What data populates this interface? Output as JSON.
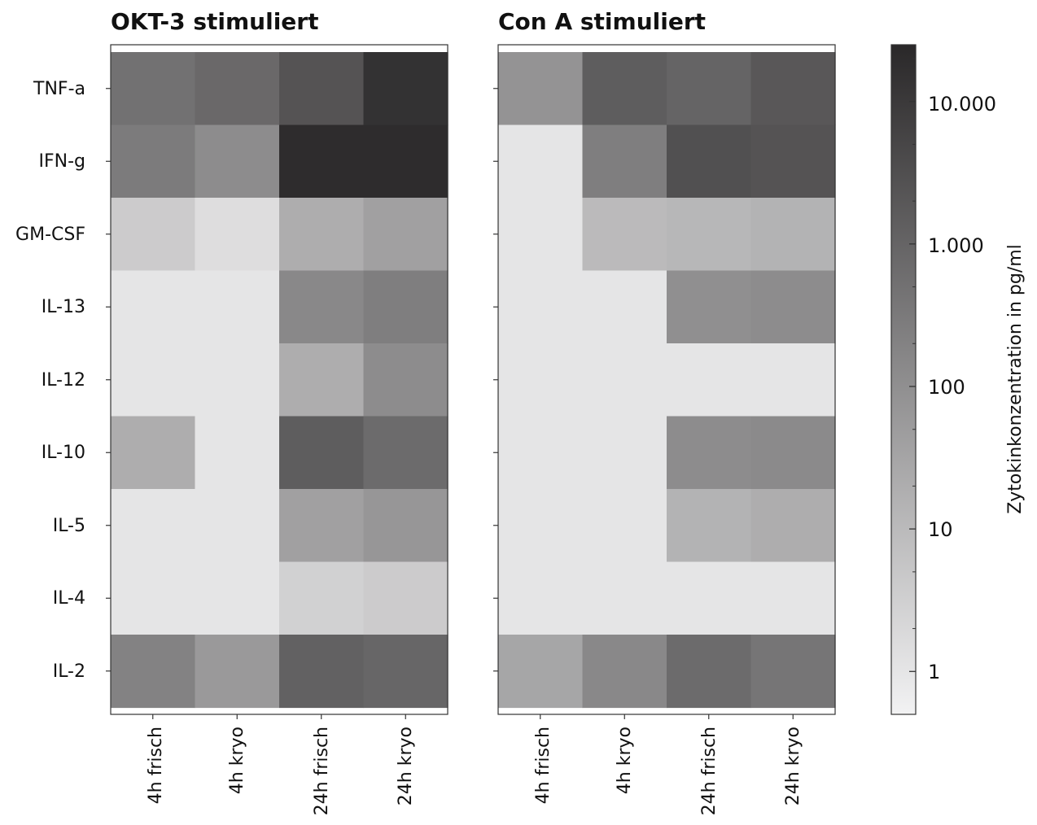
{
  "chart_data": [
    {
      "type": "heatmap",
      "title": "OKT-3 stimuliert",
      "rows": [
        "TNF-a",
        "IFN-g",
        "GM-CSF",
        "IL-13",
        "IL-12",
        "IL-10",
        "IL-5",
        "IL-4",
        "IL-2"
      ],
      "columns": [
        "4h frisch",
        "4h kryo",
        "24h frisch",
        "24h kryo"
      ],
      "values": [
        [
          500,
          800,
          2500,
          15000
        ],
        [
          300,
          120,
          20000,
          20000
        ],
        [
          4,
          1.5,
          20,
          40
        ],
        [
          1,
          1,
          150,
          250
        ],
        [
          1,
          1,
          20,
          120
        ],
        [
          20,
          1,
          1500,
          700
        ],
        [
          1,
          1,
          40,
          70
        ],
        [
          1,
          1,
          3,
          4
        ],
        [
          200,
          60,
          1200,
          900
        ]
      ]
    },
    {
      "type": "heatmap",
      "title": "Con A stimuliert",
      "rows": [
        "TNF-a",
        "IFN-g",
        "GM-CSF",
        "IL-13",
        "IL-12",
        "IL-10",
        "IL-5",
        "IL-4",
        "IL-2"
      ],
      "columns": [
        "4h frisch",
        "4h kryo",
        "24h frisch",
        "24h kryo"
      ],
      "values": [
        [
          80,
          1500,
          1000,
          2000
        ],
        [
          1,
          250,
          3000,
          2500
        ],
        [
          1,
          10,
          12,
          15
        ],
        [
          1,
          1,
          100,
          120
        ],
        [
          1,
          1,
          1,
          1
        ],
        [
          1,
          1,
          120,
          130
        ],
        [
          1,
          1,
          15,
          20
        ],
        [
          1,
          1,
          1,
          1
        ],
        [
          30,
          150,
          700,
          400
        ]
      ]
    }
  ],
  "colorbar": {
    "title": "Zytokinkonzentration in pg/ml",
    "scale": "log",
    "range": [
      0.5,
      25000
    ],
    "ticks": [
      {
        "value": 1,
        "label": "1"
      },
      {
        "value": 10,
        "label": "10"
      },
      {
        "value": 100,
        "label": "100"
      },
      {
        "value": 1000,
        "label": "1.000"
      },
      {
        "value": 10000,
        "label": "10.000"
      }
    ],
    "minor_ticks": [
      2,
      5,
      20,
      50,
      200,
      500,
      2000,
      5000,
      20000
    ],
    "color_low": "#f2f2f3",
    "color_high": "#2a2829"
  }
}
